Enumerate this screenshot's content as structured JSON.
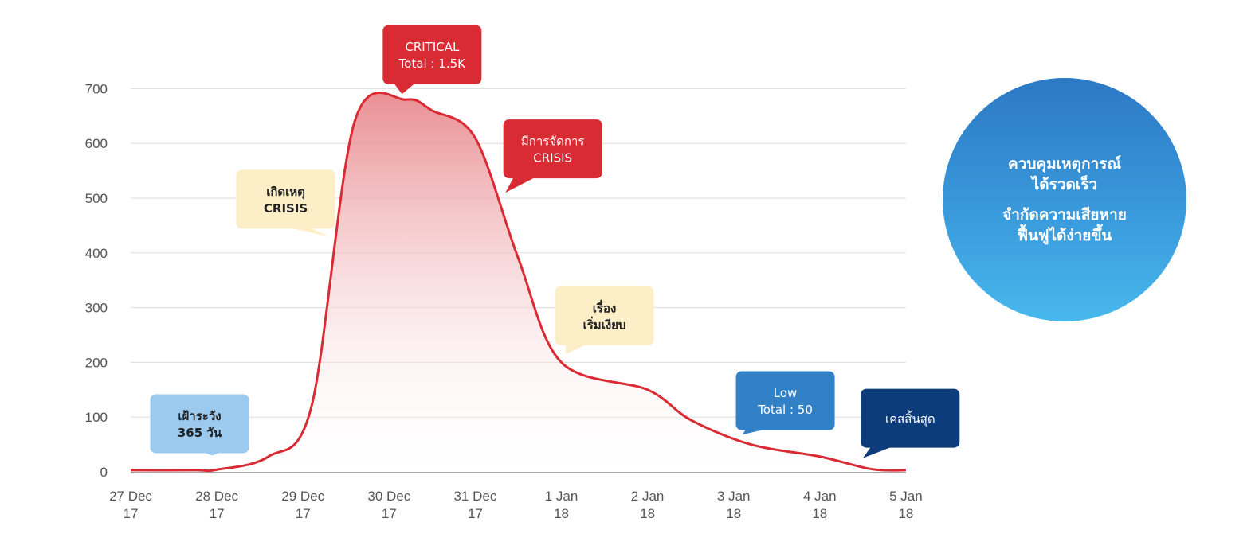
{
  "chart_data": {
    "type": "area",
    "x": [
      "27 Dec 17",
      "27 Dec 17 18h",
      "28 Dec 17",
      "28 Dec 17 12h",
      "29 Dec 17",
      "29 Dec 17 12h",
      "30 Dec 17",
      "30 Dec 17 12h",
      "31 Dec 17",
      "31 Dec 17 12h",
      "1 Jan 18",
      "2 Jan 18",
      "2 Jan 18 12h",
      "3 Jan 18",
      "4 Jan 18",
      "4 Jan 18 12h",
      "5 Jan 18"
    ],
    "x_pos": [
      0,
      0.75,
      1.0,
      1.6,
      2.1,
      2.6,
      3.2,
      3.5,
      4.0,
      4.5,
      5.0,
      6.0,
      6.5,
      7.2,
      8.0,
      8.6,
      9.0
    ],
    "values": [
      3,
      3,
      4,
      28,
      120,
      640,
      680,
      660,
      610,
      390,
      200,
      150,
      95,
      50,
      28,
      5,
      3
    ],
    "x_ticks": [
      {
        "pos": 0,
        "line1": "27 Dec",
        "line2": "17"
      },
      {
        "pos": 1,
        "line1": "28 Dec",
        "line2": "17"
      },
      {
        "pos": 2,
        "line1": "29 Dec",
        "line2": "17"
      },
      {
        "pos": 3,
        "line1": "30 Dec",
        "line2": "17"
      },
      {
        "pos": 4,
        "line1": "31 Dec",
        "line2": "17"
      },
      {
        "pos": 5,
        "line1": "1 Jan",
        "line2": "18"
      },
      {
        "pos": 6,
        "line1": "2 Jan",
        "line2": "18"
      },
      {
        "pos": 7,
        "line1": "3 Jan",
        "line2": "18"
      },
      {
        "pos": 8,
        "line1": "4 Jan",
        "line2": "18"
      },
      {
        "pos": 9,
        "line1": "5 Jan",
        "line2": "18"
      }
    ],
    "y_ticks": [
      0,
      100,
      200,
      300,
      400,
      500,
      600,
      700
    ],
    "ylim": [
      0,
      700
    ],
    "grid": true,
    "colors": {
      "line": "#d92b33",
      "grid": "#dddddd",
      "axis": "#888888"
    },
    "annotations": [
      {
        "lines": [
          "เฝ้าระวัง",
          "365 วัน"
        ],
        "x": 0.95,
        "y": 30,
        "fill": "#9ccaef",
        "text": "dark",
        "cx": 0.8,
        "cy": 88,
        "tail": "bottom-right"
      },
      {
        "lines": [
          "เกิดเหตุ",
          "CRISIS"
        ],
        "x": 2.3,
        "y": 430,
        "fill": "#fcefc8",
        "text": "dark",
        "cx": 1.8,
        "cy": 498,
        "tail": "bottom-right"
      },
      {
        "lines": [
          "CRITICAL",
          "Total : 1.5K"
        ],
        "x": 3.15,
        "y": 690,
        "fill": "#d92b33",
        "text": "light",
        "cx": 3.5,
        "cy": 762,
        "tail": "bottom-left"
      },
      {
        "lines": [
          "มีการจัดการ",
          "CRISIS"
        ],
        "x": 4.35,
        "y": 510,
        "fill": "#d92b33",
        "text": "light",
        "cx": 4.9,
        "cy": 590,
        "tail": "bottom-left"
      },
      {
        "lines": [
          "เรื่อง",
          "เริ่มเงียบ"
        ],
        "x": 5.05,
        "y": 215,
        "fill": "#fcefc8",
        "text": "dark",
        "cx": 5.5,
        "cy": 285,
        "tail": "bottom-left"
      },
      {
        "lines": [
          "Low",
          "Total : 50"
        ],
        "x": 7.1,
        "y": 68,
        "fill": "#3281c6",
        "text": "light",
        "cx": 7.6,
        "cy": 130,
        "tail": "bottom-left"
      },
      {
        "lines": [
          "เคสสิ้นสุด"
        ],
        "x": 8.5,
        "y": 25,
        "fill": "#0c3d7a",
        "text": "light",
        "cx": 9.05,
        "cy": 98,
        "tail": "bottom-left"
      }
    ]
  },
  "info_circle": {
    "line1": "ควบคุมเหตุการณ์",
    "line2": "ได้รวดเร็ว",
    "line3": "จำกัดความเสียหาย",
    "line4": "ฟื้นฟูได้ง่ายขึ้น",
    "color_top": "#2c78c4",
    "color_bottom": "#48b8ec"
  }
}
